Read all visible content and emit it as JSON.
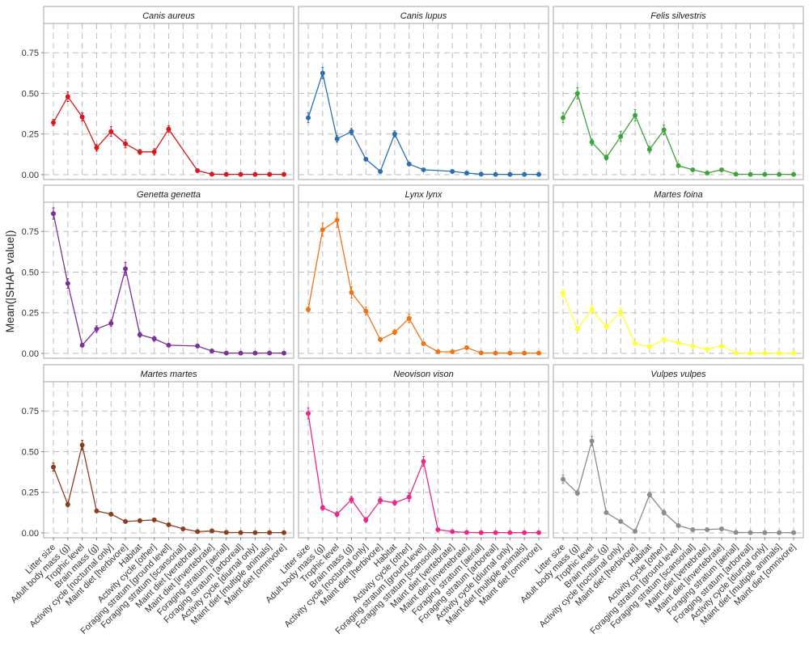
{
  "chart_data": {
    "type": "line",
    "ylabel": "Mean(|SHAP value|)",
    "xlabel": "",
    "ylim": [
      -0.03,
      0.93
    ],
    "yticks": [
      0.0,
      0.25,
      0.5,
      0.75
    ],
    "ytick_labels": [
      "0.00",
      "0.25",
      "0.50",
      "0.75"
    ],
    "grid": "on (dashed major, dotted minor)",
    "layout": "3x3 facet grid",
    "categories": [
      "Litter size",
      "Adult body mass (g)",
      "Trophic level",
      "Brain mass (g)",
      "Activity cycle [nocturnal only]",
      "Maint diet [herbivore]",
      "Habitat",
      "Activity cycle [other]",
      "Foraging stratum [ground level]",
      "Foraging stratum [scansorial]",
      "Maint diet [vertebrate]",
      "Maint diet [invertebrate]",
      "Foraging stratum [aerial]",
      "Foraging stratum [arboreal]",
      "Activity cycle [diurnal only]",
      "Maint diet [multiple animals]",
      "Maint diet [omnivore]"
    ],
    "panels": [
      {
        "title": "Canis aureus",
        "color": "#d7191c",
        "x": [
          1,
          2,
          3,
          4,
          5,
          6,
          7,
          8,
          9,
          11,
          12,
          13,
          14,
          15,
          16,
          17
        ],
        "values": [
          0.32,
          0.48,
          0.355,
          0.165,
          0.265,
          0.19,
          0.14,
          0.14,
          0.28,
          0.025,
          0.003,
          0.002,
          0.002,
          0.002,
          0.002,
          0.002
        ],
        "err": [
          0.02,
          0.03,
          0.025,
          0.02,
          0.03,
          0.025,
          0.015,
          0.02,
          0.02,
          0.005,
          0.001,
          0.001,
          0.001,
          0.001,
          0.001,
          0.001
        ]
      },
      {
        "title": "Canis lupus",
        "color": "#2c6fb0",
        "x": [
          1,
          2,
          3,
          4,
          5,
          6,
          7,
          8,
          9,
          11,
          12,
          13,
          14,
          15,
          16,
          17
        ],
        "values": [
          0.35,
          0.625,
          0.22,
          0.265,
          0.095,
          0.02,
          0.25,
          0.065,
          0.03,
          0.02,
          0.01,
          0.003,
          0.002,
          0.002,
          0.002,
          0.002
        ],
        "err": [
          0.03,
          0.035,
          0.02,
          0.02,
          0.01,
          0.005,
          0.02,
          0.01,
          0.005,
          0.005,
          0.003,
          0.001,
          0.001,
          0.001,
          0.001,
          0.001
        ]
      },
      {
        "title": "Felis silvestris",
        "color": "#3fa33c",
        "x": [
          1,
          2,
          3,
          4,
          5,
          6,
          7,
          8,
          9,
          10,
          11,
          12,
          13,
          14,
          15,
          16,
          17
        ],
        "values": [
          0.35,
          0.5,
          0.2,
          0.105,
          0.235,
          0.365,
          0.155,
          0.275,
          0.055,
          0.03,
          0.01,
          0.03,
          0.003,
          0.002,
          0.002,
          0.002,
          0.002
        ],
        "err": [
          0.03,
          0.035,
          0.02,
          0.015,
          0.03,
          0.035,
          0.02,
          0.03,
          0.01,
          0.005,
          0.003,
          0.005,
          0.001,
          0.001,
          0.001,
          0.001,
          0.001
        ]
      },
      {
        "title": "Genetta genetta",
        "color": "#7b3294",
        "x": [
          1,
          2,
          3,
          4,
          5,
          6,
          7,
          8,
          9,
          11,
          12,
          13,
          14,
          15,
          16,
          17
        ],
        "values": [
          0.86,
          0.43,
          0.05,
          0.15,
          0.185,
          0.52,
          0.115,
          0.09,
          0.05,
          0.045,
          0.015,
          0.002,
          0.002,
          0.002,
          0.002,
          0.002
        ],
        "err": [
          0.035,
          0.03,
          0.01,
          0.02,
          0.02,
          0.04,
          0.015,
          0.015,
          0.005,
          0.005,
          0.003,
          0.001,
          0.001,
          0.001,
          0.001,
          0.001
        ]
      },
      {
        "title": "Lynx lynx",
        "color": "#f07317",
        "x": [
          1,
          2,
          3,
          4,
          5,
          6,
          7,
          8,
          9,
          10,
          11,
          12,
          13,
          14,
          15,
          16,
          17
        ],
        "values": [
          0.27,
          0.76,
          0.82,
          0.375,
          0.26,
          0.085,
          0.13,
          0.215,
          0.06,
          0.01,
          0.01,
          0.035,
          0.003,
          0.002,
          0.002,
          0.002,
          0.002
        ],
        "err": [
          0.015,
          0.04,
          0.045,
          0.035,
          0.025,
          0.01,
          0.015,
          0.025,
          0.01,
          0.003,
          0.003,
          0.005,
          0.001,
          0.001,
          0.001,
          0.001,
          0.001
        ]
      },
      {
        "title": "Martes foina",
        "color": "#ffff33",
        "x": [
          1,
          2,
          3,
          4,
          5,
          6,
          7,
          8,
          9,
          10,
          11,
          12,
          13,
          14,
          15,
          16,
          17
        ],
        "values": [
          0.37,
          0.15,
          0.27,
          0.165,
          0.255,
          0.06,
          0.04,
          0.085,
          0.065,
          0.045,
          0.025,
          0.045,
          0.003,
          0.002,
          0.002,
          0.002,
          0.002
        ],
        "err": [
          0.025,
          0.015,
          0.025,
          0.015,
          0.025,
          0.01,
          0.01,
          0.01,
          0.01,
          0.005,
          0.005,
          0.005,
          0.001,
          0.001,
          0.001,
          0.001,
          0.001
        ]
      },
      {
        "title": "Martes martes",
        "color": "#8c3e1c",
        "x": [
          1,
          2,
          3,
          4,
          5,
          6,
          7,
          8,
          9,
          10,
          11,
          12,
          13,
          14,
          15,
          16,
          17
        ],
        "values": [
          0.405,
          0.175,
          0.54,
          0.135,
          0.115,
          0.07,
          0.075,
          0.08,
          0.05,
          0.025,
          0.008,
          0.012,
          0.003,
          0.002,
          0.002,
          0.002,
          0.002
        ],
        "err": [
          0.025,
          0.015,
          0.03,
          0.01,
          0.01,
          0.01,
          0.01,
          0.01,
          0.005,
          0.005,
          0.002,
          0.003,
          0.001,
          0.001,
          0.001,
          0.001,
          0.001
        ]
      },
      {
        "title": "Neovison vison",
        "color": "#e7298a",
        "x": [
          1,
          2,
          3,
          4,
          5,
          6,
          7,
          8,
          9,
          10,
          11,
          12,
          13,
          14,
          15,
          16,
          17
        ],
        "values": [
          0.735,
          0.155,
          0.115,
          0.205,
          0.08,
          0.2,
          0.185,
          0.22,
          0.44,
          0.02,
          0.008,
          0.003,
          0.002,
          0.002,
          0.002,
          0.002,
          0.002
        ],
        "err": [
          0.035,
          0.015,
          0.015,
          0.02,
          0.015,
          0.02,
          0.015,
          0.025,
          0.03,
          0.005,
          0.002,
          0.001,
          0.001,
          0.001,
          0.001,
          0.001,
          0.001
        ]
      },
      {
        "title": "Vulpes vulpes",
        "color": "#8c8c8c",
        "x": [
          1,
          2,
          3,
          4,
          5,
          6,
          7,
          8,
          9,
          10,
          11,
          12,
          13,
          14,
          15,
          16,
          17
        ],
        "values": [
          0.33,
          0.245,
          0.565,
          0.125,
          0.07,
          0.01,
          0.235,
          0.125,
          0.045,
          0.02,
          0.02,
          0.025,
          0.003,
          0.002,
          0.002,
          0.002,
          0.002
        ],
        "err": [
          0.025,
          0.015,
          0.03,
          0.01,
          0.01,
          0.003,
          0.015,
          0.015,
          0.005,
          0.003,
          0.003,
          0.003,
          0.001,
          0.001,
          0.001,
          0.001,
          0.001
        ]
      }
    ]
  }
}
